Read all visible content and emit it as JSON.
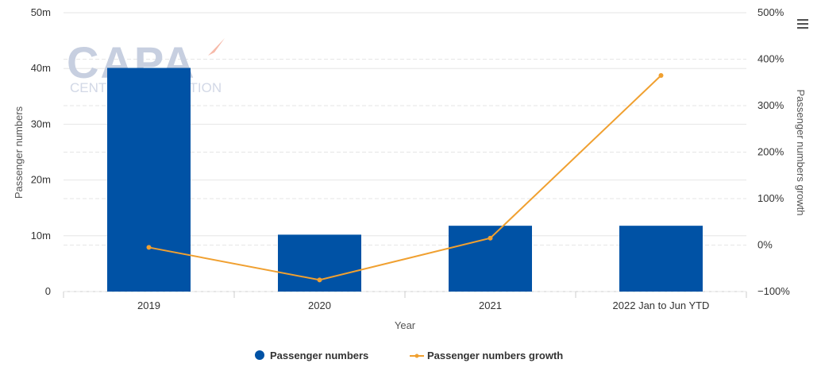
{
  "watermark": {
    "brand": "CAPA",
    "tagline": "CENTRE FOR AVIATION"
  },
  "colors": {
    "bar": "#0052a5",
    "line": "#f0a030",
    "grid": "#e6e6e6"
  },
  "menu_icon": "hamburger-menu-icon",
  "chart_data": {
    "type": "bar",
    "categories": [
      "2019",
      "2020",
      "2021",
      "2022 Jan to Jun YTD"
    ],
    "xlabel": "Year",
    "series": [
      {
        "name": "Passenger numbers",
        "type": "bar",
        "axis": "left",
        "values": [
          40100000,
          10200000,
          11800000,
          11800000
        ]
      },
      {
        "name": "Passenger numbers growth",
        "type": "line",
        "axis": "right",
        "values": [
          -5,
          -75,
          15,
          365
        ]
      }
    ],
    "y_left": {
      "label": "Passenger numbers",
      "range": [
        0,
        50000000
      ],
      "ticks": [
        "0",
        "10m",
        "20m",
        "30m",
        "40m",
        "50m"
      ]
    },
    "y_right": {
      "label": "Passenger numbers growth",
      "range": [
        -100,
        500
      ],
      "ticks": [
        "−100%",
        "0%",
        "100%",
        "200%",
        "300%",
        "400%",
        "500%"
      ]
    },
    "grid": true,
    "legend": "bottom-center"
  }
}
